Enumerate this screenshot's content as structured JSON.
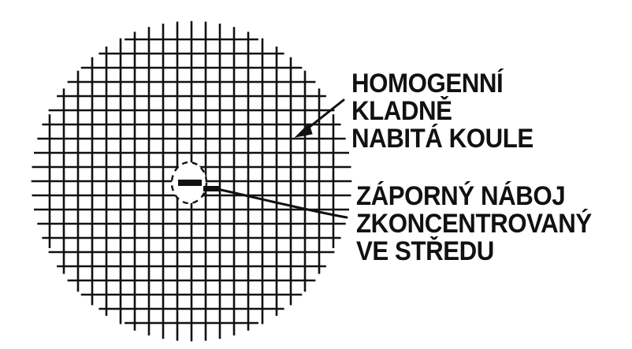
{
  "labels": {
    "sphere": [
      "HOMOGENNÍ",
      "KLADNĚ",
      "NABITÁ KOULE"
    ],
    "charge": [
      "ZÁPORNÝ NÁBOJ",
      "ZKONCENTROVANÝ",
      "VE STŘEDU"
    ]
  },
  "colors": {
    "ink": "#111111",
    "background": "#ffffff"
  }
}
